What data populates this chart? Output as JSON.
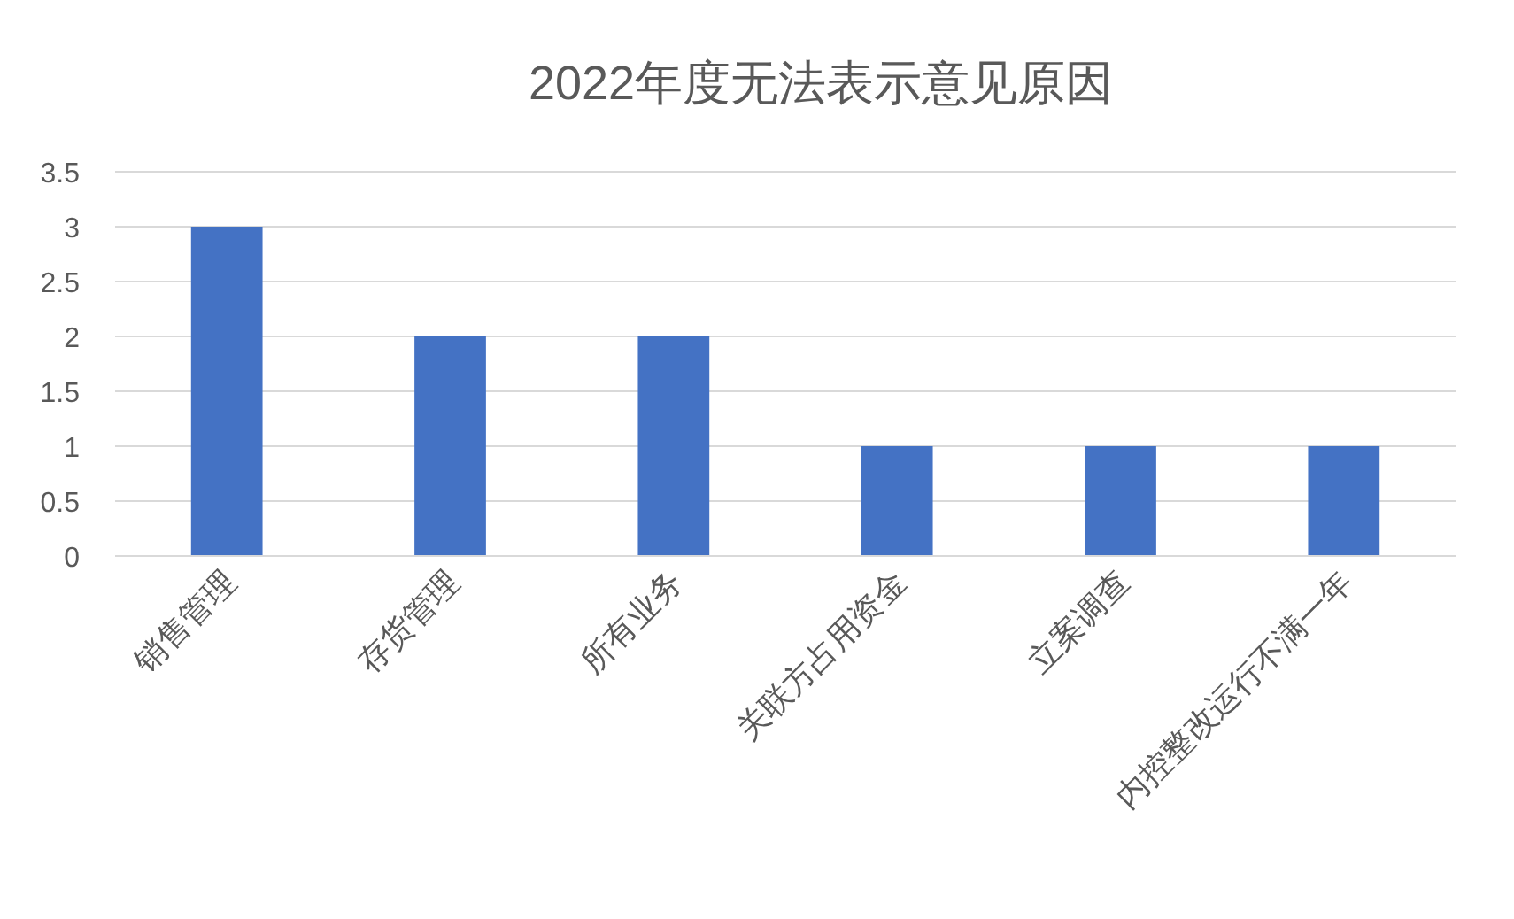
{
  "chart_data": {
    "type": "bar",
    "title": "2022年度无法表示意见原因",
    "categories": [
      "销售管理",
      "存货管理",
      "所有业务",
      "关联方占用资金",
      "立案调查",
      "内控整改运行不满一年"
    ],
    "values": [
      3,
      2,
      2,
      1,
      1,
      1
    ],
    "color": "#4472c4",
    "ylim": [
      0,
      3.5
    ],
    "yticks": [
      0,
      0.5,
      1,
      1.5,
      2,
      2.5,
      3,
      3.5
    ],
    "grid": "y"
  }
}
